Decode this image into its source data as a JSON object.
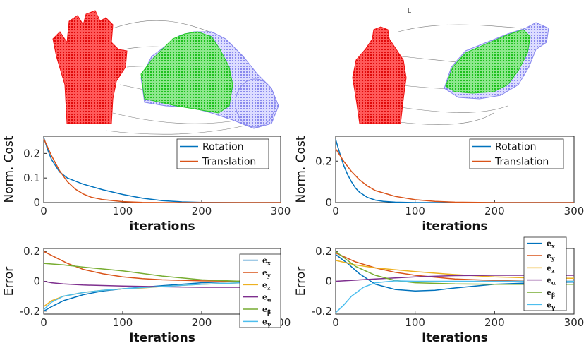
{
  "colors": {
    "red_cloud": "#ee1111",
    "green_cloud": "#22cc22",
    "blue_cloud": "#7777ee",
    "series": [
      "#0072BD",
      "#D95319",
      "#EDB120",
      "#7E2F8E",
      "#77AC30",
      "#4DBEEE"
    ]
  },
  "stray_mark": "L",
  "chart_data": [
    {
      "type": "line",
      "id": "cost-left",
      "xlabel": "iterations",
      "ylabel": "Norm. Cost",
      "xlim": [
        0,
        300
      ],
      "ylim": [
        0,
        0.27
      ],
      "xticks": [
        0,
        100,
        200,
        300
      ],
      "yticks": [
        0,
        0.1,
        0.2
      ],
      "ytick_labels": [
        "0",
        "0.1",
        "0.2"
      ],
      "legend": "top-right",
      "series": [
        {
          "name": "Rotation",
          "x": [
            0,
            5,
            10,
            20,
            30,
            50,
            75,
            100,
            125,
            150,
            175,
            200,
            250,
            300
          ],
          "y": [
            0.265,
            0.215,
            0.175,
            0.125,
            0.1,
            0.075,
            0.052,
            0.033,
            0.018,
            0.008,
            0.003,
            0.001,
            0.0,
            0.0
          ]
        },
        {
          "name": "Translation",
          "x": [
            0,
            5,
            10,
            20,
            30,
            40,
            50,
            60,
            75,
            100,
            125,
            150,
            200,
            300
          ],
          "y": [
            0.26,
            0.225,
            0.19,
            0.13,
            0.085,
            0.055,
            0.035,
            0.022,
            0.012,
            0.004,
            0.001,
            0.0,
            0.0,
            0.0
          ]
        }
      ]
    },
    {
      "type": "line",
      "id": "cost-right",
      "xlabel": "iterations",
      "ylabel": "Norm. Cost",
      "xlim": [
        0,
        300
      ],
      "ylim": [
        0,
        0.32
      ],
      "xticks": [
        0,
        100,
        200,
        300
      ],
      "yticks": [
        0,
        0.2
      ],
      "ytick_labels": [
        "0",
        "0.2"
      ],
      "legend": "top-right",
      "series": [
        {
          "name": "Rotation",
          "x": [
            0,
            5,
            10,
            15,
            20,
            25,
            30,
            40,
            50,
            60,
            75,
            100,
            150,
            300
          ],
          "y": [
            0.305,
            0.24,
            0.18,
            0.135,
            0.1,
            0.07,
            0.05,
            0.025,
            0.012,
            0.006,
            0.002,
            0.0,
            0.0,
            0.0
          ]
        },
        {
          "name": "Translation",
          "x": [
            0,
            10,
            20,
            30,
            40,
            50,
            75,
            100,
            125,
            150,
            200,
            300
          ],
          "y": [
            0.26,
            0.2,
            0.15,
            0.11,
            0.08,
            0.058,
            0.03,
            0.014,
            0.006,
            0.002,
            0.0,
            0.0
          ]
        }
      ]
    },
    {
      "type": "line",
      "id": "error-left",
      "xlabel": "Iterations",
      "ylabel": "Error",
      "xlim": [
        0,
        300
      ],
      "ylim": [
        -0.22,
        0.22
      ],
      "xticks": [
        0,
        100,
        200,
        300
      ],
      "yticks": [
        -0.2,
        0,
        0.2
      ],
      "ytick_labels": [
        "-0.2",
        "0",
        "0.2"
      ],
      "legend": "right",
      "series": [
        {
          "name": "e",
          "sub": "x",
          "x": [
            0,
            10,
            25,
            50,
            75,
            100,
            150,
            200,
            250,
            300
          ],
          "y": [
            -0.2,
            -0.17,
            -0.13,
            -0.09,
            -0.065,
            -0.05,
            -0.03,
            -0.01,
            0.0,
            0.005
          ]
        },
        {
          "name": "e",
          "sub": "y",
          "x": [
            0,
            15,
            30,
            50,
            75,
            100,
            125,
            150,
            200,
            250,
            300
          ],
          "y": [
            0.2,
            0.16,
            0.12,
            0.08,
            0.05,
            0.03,
            0.018,
            0.01,
            0.003,
            0.0,
            0.0
          ]
        },
        {
          "name": "e",
          "sub": "z",
          "x": [
            0,
            10,
            25,
            50,
            75,
            100,
            125,
            150,
            200,
            250,
            300
          ],
          "y": [
            -0.17,
            -0.13,
            -0.1,
            -0.075,
            -0.06,
            -0.05,
            -0.045,
            -0.035,
            -0.02,
            -0.01,
            -0.005
          ]
        },
        {
          "name": "e",
          "sub": "α",
          "x": [
            0,
            10,
            25,
            50,
            100,
            150,
            200,
            250,
            300
          ],
          "y": [
            0.0,
            -0.01,
            -0.018,
            -0.025,
            -0.032,
            -0.037,
            -0.04,
            -0.04,
            -0.04
          ]
        },
        {
          "name": "e",
          "sub": "β",
          "x": [
            0,
            25,
            50,
            100,
            150,
            200,
            250,
            300
          ],
          "y": [
            0.12,
            0.11,
            0.095,
            0.07,
            0.035,
            0.01,
            0.0,
            0.0
          ]
        },
        {
          "name": "e",
          "sub": "γ",
          "x": [
            0,
            10,
            25,
            50,
            75,
            100,
            150,
            200,
            250,
            300
          ],
          "y": [
            -0.19,
            -0.14,
            -0.1,
            -0.075,
            -0.06,
            -0.05,
            -0.035,
            -0.02,
            -0.01,
            -0.005
          ]
        }
      ]
    },
    {
      "type": "line",
      "id": "error-right",
      "xlabel": "Iterations",
      "ylabel": "Error",
      "xlim": [
        0,
        300
      ],
      "ylim": [
        -0.22,
        0.22
      ],
      "xticks": [
        0,
        100,
        200,
        300
      ],
      "yticks": [
        -0.2,
        0,
        0.2
      ],
      "ytick_labels": [
        "-0.2",
        "0",
        "0.2"
      ],
      "legend": "right",
      "series": [
        {
          "name": "e",
          "sub": "x",
          "x": [
            0,
            15,
            30,
            50,
            75,
            100,
            125,
            150,
            200,
            250,
            300
          ],
          "y": [
            0.18,
            0.12,
            0.05,
            -0.02,
            -0.055,
            -0.065,
            -0.06,
            -0.045,
            -0.02,
            -0.01,
            -0.005
          ]
        },
        {
          "name": "e",
          "sub": "y",
          "x": [
            0,
            25,
            50,
            75,
            100,
            150,
            200,
            250,
            300
          ],
          "y": [
            0.19,
            0.13,
            0.09,
            0.06,
            0.04,
            0.015,
            0.005,
            0.0,
            0.0
          ]
        },
        {
          "name": "e",
          "sub": "z",
          "x": [
            0,
            25,
            50,
            100,
            150,
            200,
            250,
            300
          ],
          "y": [
            0.14,
            0.11,
            0.09,
            0.065,
            0.045,
            0.03,
            0.022,
            0.02
          ]
        },
        {
          "name": "e",
          "sub": "α",
          "x": [
            0,
            50,
            100,
            150,
            200,
            250,
            300
          ],
          "y": [
            0.0,
            0.015,
            0.03,
            0.038,
            0.04,
            0.04,
            0.04
          ]
        },
        {
          "name": "e",
          "sub": "β",
          "x": [
            0,
            10,
            25,
            50,
            75,
            100,
            150,
            200,
            250,
            300
          ],
          "y": [
            0.2,
            0.16,
            0.1,
            0.04,
            0.005,
            -0.01,
            -0.018,
            -0.02,
            -0.02,
            -0.02
          ]
        },
        {
          "name": "e",
          "sub": "γ",
          "x": [
            0,
            10,
            20,
            35,
            50,
            75,
            100,
            150,
            200,
            300
          ],
          "y": [
            -0.21,
            -0.16,
            -0.1,
            -0.04,
            -0.01,
            0.003,
            0.0,
            0.0,
            0.0,
            0.0
          ]
        }
      ]
    }
  ]
}
